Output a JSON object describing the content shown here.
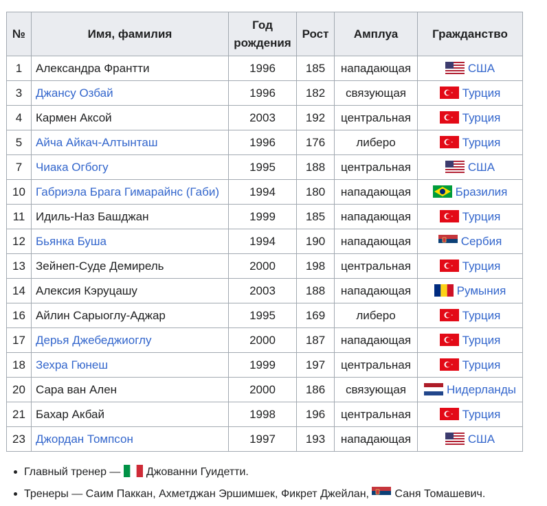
{
  "table": {
    "headers": {
      "num": "№",
      "name": "Имя, фамилия",
      "birth_line1": "Год",
      "birth_line2": "рождения",
      "height": "Рост",
      "role": "Амплуа",
      "citizenship": "Гражданство"
    },
    "rows": [
      {
        "num": "1",
        "name": "Александра Франтти",
        "link": false,
        "year": "1996",
        "height": "185",
        "role": "нападающая",
        "flag": "usa-flag-icon",
        "country": "США"
      },
      {
        "num": "3",
        "name": "Джансу Озбай",
        "link": true,
        "year": "1996",
        "height": "182",
        "role": "связующая",
        "flag": "turkey-flag-icon",
        "country": "Турция"
      },
      {
        "num": "4",
        "name": "Кармен Аксой",
        "link": false,
        "year": "2003",
        "height": "192",
        "role": "центральная",
        "flag": "turkey-flag-icon",
        "country": "Турция"
      },
      {
        "num": "5",
        "name": "Айча Айкач-Алтынташ",
        "link": true,
        "year": "1996",
        "height": "176",
        "role": "либеро",
        "flag": "turkey-flag-icon",
        "country": "Турция"
      },
      {
        "num": "7",
        "name": "Чиака Огбогу",
        "link": true,
        "year": "1995",
        "height": "188",
        "role": "центральная",
        "flag": "usa-flag-icon",
        "country": "США"
      },
      {
        "num": "10",
        "name": "Габриэла Брага Гимарайнс (Габи)",
        "link": true,
        "year": "1994",
        "height": "180",
        "role": "нападающая",
        "flag": "brazil-flag-icon",
        "country": "Бразилия"
      },
      {
        "num": "11",
        "name": "Идиль-Наз Башджан",
        "link": false,
        "year": "1999",
        "height": "185",
        "role": "нападающая",
        "flag": "turkey-flag-icon",
        "country": "Турция"
      },
      {
        "num": "12",
        "name": "Бьянка Буша",
        "link": true,
        "year": "1994",
        "height": "190",
        "role": "нападающая",
        "flag": "serbia-flag-icon",
        "country": "Сербия"
      },
      {
        "num": "13",
        "name": "Зейнеп-Суде Демирель",
        "link": false,
        "year": "2000",
        "height": "198",
        "role": "центральная",
        "flag": "turkey-flag-icon",
        "country": "Турция"
      },
      {
        "num": "14",
        "name": "Алексия Кэруцашу",
        "link": false,
        "year": "2003",
        "height": "188",
        "role": "нападающая",
        "flag": "romania-flag-icon",
        "country": "Румыния"
      },
      {
        "num": "16",
        "name": "Айлин Сарыоглу-Аджар",
        "link": false,
        "year": "1995",
        "height": "169",
        "role": "либеро",
        "flag": "turkey-flag-icon",
        "country": "Турция"
      },
      {
        "num": "17",
        "name": "Дерья Джебеджиоглу",
        "link": true,
        "year": "2000",
        "height": "187",
        "role": "нападающая",
        "flag": "turkey-flag-icon",
        "country": "Турция"
      },
      {
        "num": "18",
        "name": "Зехра Гюнеш",
        "link": true,
        "year": "1999",
        "height": "197",
        "role": "центральная",
        "flag": "turkey-flag-icon",
        "country": "Турция"
      },
      {
        "num": "20",
        "name": "Сара ван Ален",
        "link": false,
        "year": "2000",
        "height": "186",
        "role": "связующая",
        "flag": "netherlands-flag-icon",
        "country": "Нидерланды"
      },
      {
        "num": "21",
        "name": "Бахар Акбай",
        "link": false,
        "year": "1998",
        "height": "196",
        "role": "центральная",
        "flag": "turkey-flag-icon",
        "country": "Турция"
      },
      {
        "num": "23",
        "name": "Джордан Томпсон",
        "link": true,
        "year": "1997",
        "height": "193",
        "role": "нападающая",
        "flag": "usa-flag-icon",
        "country": "США"
      }
    ]
  },
  "notes": {
    "coach_prefix": "Главный тренер —",
    "coach_flag": "italy-flag-icon",
    "coach_name": "Джованни Гуидетти.",
    "assistants_prefix": "Тренеры — Саим Паккан, Ахметджан Эршимшек, Фикрет Джейлан,",
    "assistant_flag": "serbia-flag-icon",
    "assistant_name": "Саня Томашевич."
  },
  "colors": {
    "link": "#3366cc",
    "header_bg": "#eaecf0",
    "border": "#a2a9b1",
    "text": "#202122"
  }
}
